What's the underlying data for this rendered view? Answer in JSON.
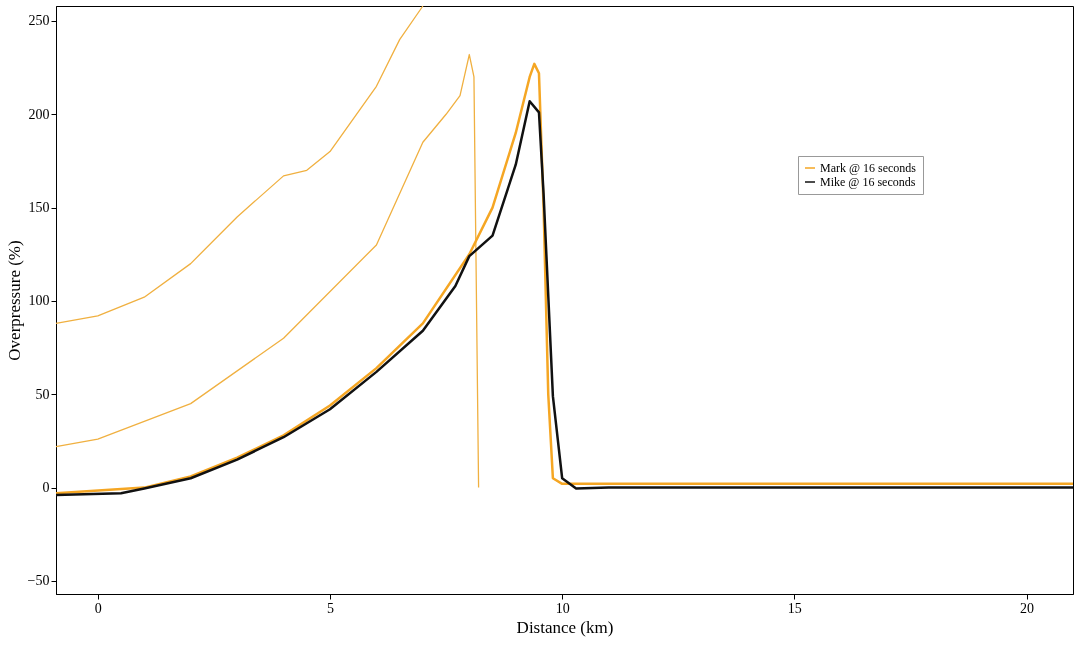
{
  "chart_data": {
    "type": "line",
    "xlabel": "Distance (km)",
    "ylabel": "Overpressure (%)",
    "xlim": [
      -0.9,
      21
    ],
    "ylim": [
      -57,
      258
    ],
    "xticks": [
      0,
      5,
      10,
      15,
      20
    ],
    "yticks": [
      -50,
      0,
      50,
      100,
      150,
      200,
      250
    ],
    "legend": "top right",
    "grid": false,
    "marker": "none",
    "line_style": "solid",
    "series": [
      {
        "color": "#f0b040",
        "x": [
          -0.9,
          0,
          1,
          2,
          3,
          4,
          4.5,
          5,
          6,
          6.5,
          7
        ],
        "values": [
          88,
          92,
          102,
          120,
          145,
          167,
          170,
          180,
          215,
          240,
          258
        ]
      },
      {
        "color": "#f0b040",
        "x": [
          -0.9,
          0,
          2,
          4,
          6,
          7,
          7.5,
          7.8,
          8,
          8.1,
          8.2
        ],
        "values": [
          22,
          26,
          45,
          80,
          130,
          185,
          200,
          210,
          232,
          220,
          0
        ]
      },
      {
        "name": "Mark @ 16 seconds",
        "color": "#f5a623",
        "x": [
          -0.9,
          1,
          2,
          3,
          4,
          5,
          6,
          7,
          8,
          8.5,
          9,
          9.3,
          9.4,
          9.5,
          9.6,
          9.7,
          9.8,
          10,
          21
        ],
        "values": [
          -3,
          0,
          6,
          16,
          28,
          44,
          64,
          88,
          125,
          150,
          190,
          220,
          227,
          222,
          150,
          50,
          5,
          2,
          2
        ]
      },
      {
        "name": "Mike @ 16 seconds",
        "color": "#111111",
        "x": [
          -0.9,
          0.5,
          1,
          2,
          3,
          4,
          5,
          6,
          7,
          7.7,
          8,
          8.5,
          9,
          9.3,
          9.5,
          9.6,
          9.8,
          10,
          10.3,
          11,
          21
        ],
        "values": [
          -4,
          -3,
          -0.5,
          5,
          15,
          27,
          42,
          62,
          84,
          108,
          124,
          135,
          173,
          207,
          201,
          157,
          49,
          5,
          -0.5,
          0,
          0
        ]
      }
    ]
  }
}
